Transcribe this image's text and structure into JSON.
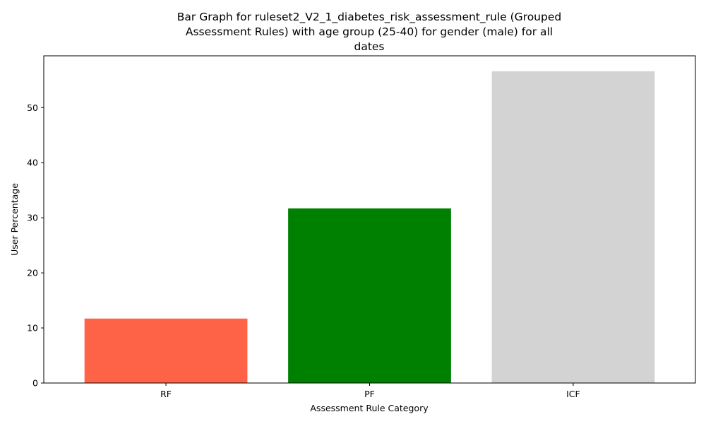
{
  "chart_data": {
    "type": "bar",
    "title_lines": [
      "Bar Graph for ruleset2_V2_1_diabetes_risk_assessment_rule (Grouped",
      "Assessment Rules) with age group (25-40) for gender (male) for all",
      "dates"
    ],
    "xlabel": "Assessment Rule Category",
    "ylabel": "User Percentage",
    "categories": [
      "RF",
      "PF",
      "ICF"
    ],
    "values": [
      11.7,
      31.7,
      56.6
    ],
    "colors": [
      "#ff6347",
      "#008000",
      "#d3d3d3"
    ],
    "ylim": [
      0,
      59.4
    ],
    "yticks": [
      0,
      10,
      20,
      30,
      40,
      50
    ],
    "grid": false,
    "legend": "none"
  }
}
